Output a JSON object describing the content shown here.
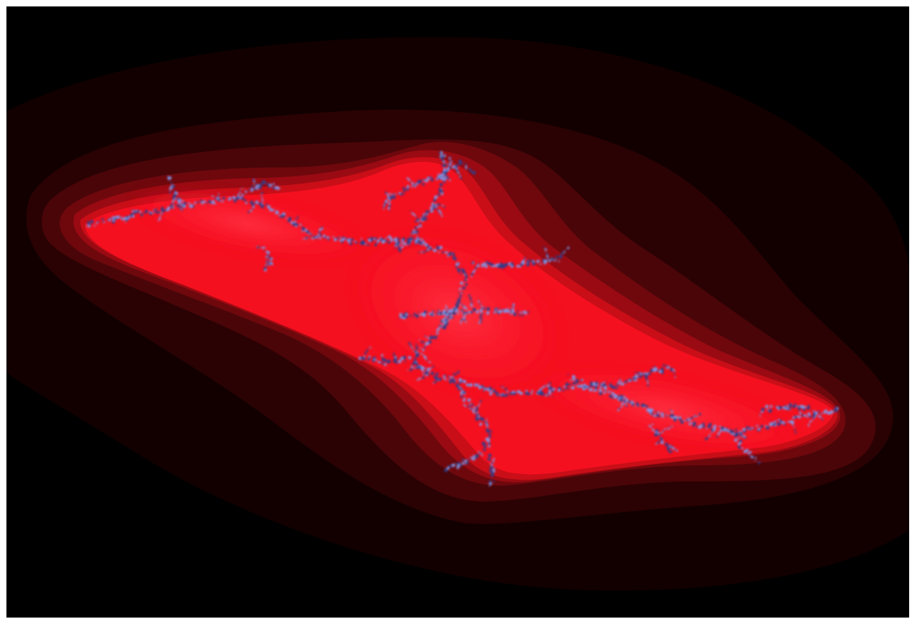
{
  "image": {
    "background_color": "#000000",
    "page_color": "#ffffff",
    "subject": "julia-set-fractal",
    "palette": {
      "escape_bands_outer_to_inner": [
        "#120000",
        "#2a0203",
        "#4a0508",
        "#6e080d",
        "#9a0a12",
        "#c90e18",
        "#f5101f",
        "#ff1530"
      ],
      "set_core": "#ff2433",
      "filament_dark": "#2a3d8c",
      "filament_light": "#7f96e6"
    }
  }
}
